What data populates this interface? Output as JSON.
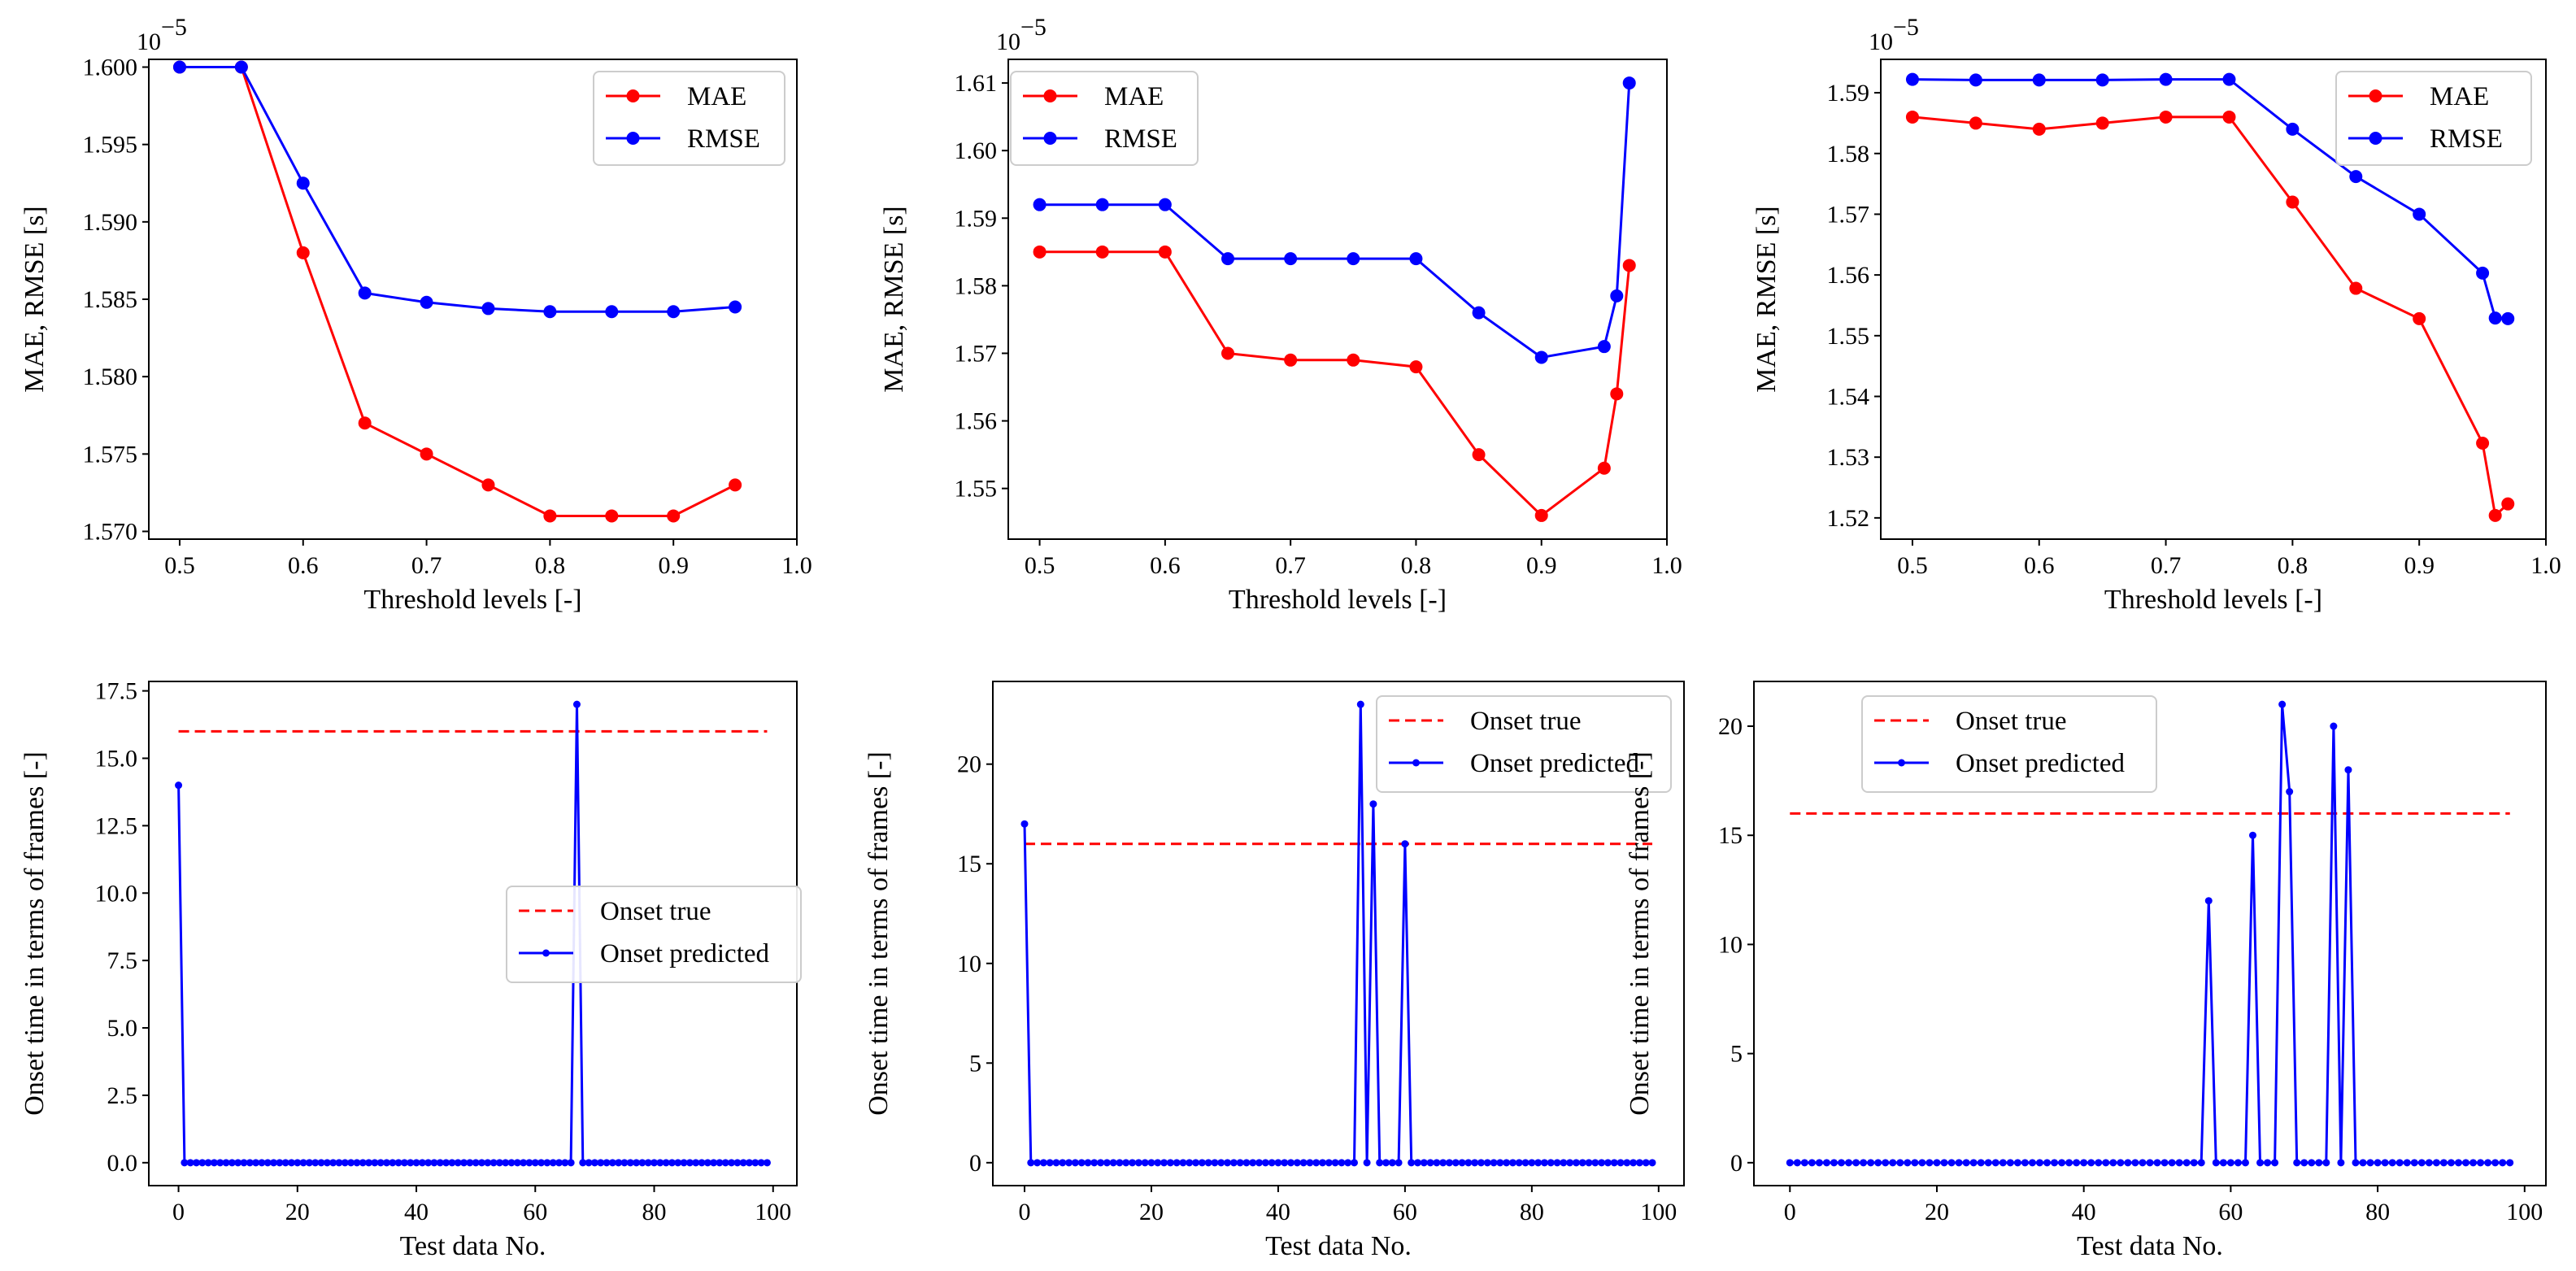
{
  "colors": {
    "mae": "#ff0000",
    "rmse": "#0000ff",
    "true": "#ff0000",
    "pred": "#0000ff"
  },
  "chart_data": [
    {
      "type": "line",
      "xlabel": "Threshold levels [-]",
      "ylabel": "MAE, RMSE [s]",
      "y_exponent": "10",
      "y_exponent_power": "−5",
      "xlim": [
        0.475,
        1.0
      ],
      "ylim": [
        1.5695,
        1.6005
      ],
      "xticks": [
        0.5,
        0.6,
        0.7,
        0.8,
        0.9,
        1.0
      ],
      "xtick_labels": [
        "0.5",
        "0.6",
        "0.7",
        "0.8",
        "0.9",
        "1.0"
      ],
      "yticks": [
        1.57,
        1.575,
        1.58,
        1.585,
        1.59,
        1.595,
        1.6
      ],
      "ytick_labels": [
        "1.570",
        "1.575",
        "1.580",
        "1.585",
        "1.590",
        "1.595",
        "1.600"
      ],
      "legend_position": "upper right",
      "series": [
        {
          "name": "MAE",
          "color": "#ff0000",
          "marker": "large",
          "x": [
            0.5,
            0.55,
            0.6,
            0.65,
            0.7,
            0.75,
            0.8,
            0.85,
            0.9,
            0.95
          ],
          "values": [
            1.6,
            1.6,
            1.588,
            1.577,
            1.575,
            1.573,
            1.571,
            1.571,
            1.571,
            1.573
          ]
        },
        {
          "name": "RMSE",
          "color": "#0000ff",
          "marker": "large",
          "x": [
            0.5,
            0.55,
            0.6,
            0.65,
            0.7,
            0.75,
            0.8,
            0.85,
            0.9,
            0.95
          ],
          "values": [
            1.6,
            1.6,
            1.5925,
            1.5854,
            1.5848,
            1.5844,
            1.5842,
            1.5842,
            1.5842,
            1.5845
          ]
        }
      ]
    },
    {
      "type": "line",
      "xlabel": "Threshold levels [-]",
      "ylabel": "MAE, RMSE [s]",
      "y_exponent": "10",
      "y_exponent_power": "−5",
      "xlim": [
        0.475,
        1.0
      ],
      "ylim": [
        1.5425,
        1.6135
      ],
      "xticks": [
        0.5,
        0.6,
        0.7,
        0.8,
        0.9,
        1.0
      ],
      "xtick_labels": [
        "0.5",
        "0.6",
        "0.7",
        "0.8",
        "0.9",
        "1.0"
      ],
      "yticks": [
        1.55,
        1.56,
        1.57,
        1.58,
        1.59,
        1.6,
        1.61
      ],
      "ytick_labels": [
        "1.55",
        "1.56",
        "1.57",
        "1.58",
        "1.59",
        "1.60",
        "1.61"
      ],
      "legend_position": "upper left",
      "series": [
        {
          "name": "MAE",
          "color": "#ff0000",
          "marker": "large",
          "x": [
            0.5,
            0.55,
            0.6,
            0.65,
            0.7,
            0.75,
            0.8,
            0.85,
            0.9,
            0.95,
            0.96,
            0.97
          ],
          "values": [
            1.585,
            1.585,
            1.585,
            1.57,
            1.569,
            1.569,
            1.568,
            1.555,
            1.546,
            1.553,
            1.564,
            1.583
          ]
        },
        {
          "name": "RMSE",
          "color": "#0000ff",
          "marker": "large",
          "x": [
            0.5,
            0.55,
            0.6,
            0.65,
            0.7,
            0.75,
            0.8,
            0.85,
            0.9,
            0.95,
            0.96,
            0.97
          ],
          "values": [
            1.592,
            1.592,
            1.592,
            1.584,
            1.584,
            1.584,
            1.584,
            1.576,
            1.5694,
            1.571,
            1.5785,
            1.61
          ]
        }
      ]
    },
    {
      "type": "line",
      "xlabel": "Threshold levels [-]",
      "ylabel": "MAE, RMSE [s]",
      "y_exponent": "10",
      "y_exponent_power": "−5",
      "xlim": [
        0.475,
        1.0
      ],
      "ylim": [
        1.5165,
        1.5955
      ],
      "xticks": [
        0.5,
        0.6,
        0.7,
        0.8,
        0.9,
        1.0
      ],
      "xtick_labels": [
        "0.5",
        "0.6",
        "0.7",
        "0.8",
        "0.9",
        "1.0"
      ],
      "yticks": [
        1.52,
        1.53,
        1.54,
        1.55,
        1.56,
        1.57,
        1.58,
        1.59
      ],
      "ytick_labels": [
        "1.52",
        "1.53",
        "1.54",
        "1.55",
        "1.56",
        "1.57",
        "1.58",
        "1.59"
      ],
      "legend_position": "upper right",
      "series": [
        {
          "name": "MAE",
          "color": "#ff0000",
          "marker": "large",
          "x": [
            0.5,
            0.55,
            0.6,
            0.65,
            0.7,
            0.75,
            0.8,
            0.85,
            0.9,
            0.95,
            0.96,
            0.97
          ],
          "values": [
            1.586,
            1.585,
            1.584,
            1.585,
            1.586,
            1.586,
            1.572,
            1.5578,
            1.5528,
            1.5323,
            1.5204,
            1.5223
          ]
        },
        {
          "name": "RMSE",
          "color": "#0000ff",
          "marker": "large",
          "x": [
            0.5,
            0.55,
            0.6,
            0.65,
            0.7,
            0.75,
            0.8,
            0.85,
            0.9,
            0.95,
            0.96,
            0.97
          ],
          "values": [
            1.5922,
            1.5921,
            1.5921,
            1.5921,
            1.5922,
            1.5922,
            1.584,
            1.5762,
            1.57,
            1.5603,
            1.5529,
            1.5528
          ]
        }
      ]
    },
    {
      "type": "line",
      "xlabel": "Test data No.",
      "ylabel": "Onset time in terms of frames [-]",
      "xlim": [
        -5,
        104
      ],
      "ylim": [
        -0.85,
        17.85
      ],
      "xticks": [
        0,
        20,
        40,
        60,
        80,
        100
      ],
      "xtick_labels": [
        "0",
        "20",
        "40",
        "60",
        "80",
        "100"
      ],
      "yticks": [
        0,
        2.5,
        5,
        7.5,
        10,
        12.5,
        15,
        17.5
      ],
      "ytick_labels": [
        "0.0",
        "2.5",
        "5.0",
        "7.5",
        "10.0",
        "12.5",
        "15.0",
        "17.5"
      ],
      "legend_position": "center right",
      "true_onset": {
        "name": "Onset true",
        "value": 16,
        "x_range": [
          0,
          99
        ]
      },
      "predicted": {
        "name": "Onset predicted",
        "count": 100,
        "nonzero": [
          [
            0,
            14
          ],
          [
            67,
            17
          ]
        ]
      }
    },
    {
      "type": "line",
      "xlabel": "Test data No.",
      "ylabel": "Onset time in terms of frames [-]",
      "xlim": [
        -5,
        104
      ],
      "ylim": [
        -1.15,
        24.15
      ],
      "xticks": [
        0,
        20,
        40,
        60,
        80,
        100
      ],
      "xtick_labels": [
        "0",
        "20",
        "40",
        "60",
        "80",
        "100"
      ],
      "yticks": [
        0,
        5,
        10,
        15,
        20
      ],
      "ytick_labels": [
        "0",
        "5",
        "10",
        "15",
        "20"
      ],
      "legend_position": "upper right",
      "true_onset": {
        "name": "Onset true",
        "value": 16,
        "x_range": [
          0,
          99
        ]
      },
      "predicted": {
        "name": "Onset predicted",
        "count": 100,
        "nonzero": [
          [
            0,
            17
          ],
          [
            53,
            23
          ],
          [
            55,
            18
          ],
          [
            60,
            16
          ]
        ]
      }
    },
    {
      "type": "line",
      "xlabel": "Test data No.",
      "ylabel": "Onset time in terms of frames [-]",
      "xlim": [
        -4.9,
        102.9
      ],
      "ylim": [
        -1.05,
        22.05
      ],
      "xticks": [
        0,
        20,
        40,
        60,
        80,
        100
      ],
      "xtick_labels": [
        "0",
        "20",
        "40",
        "60",
        "80",
        "100"
      ],
      "yticks": [
        0,
        5,
        10,
        15,
        20
      ],
      "ytick_labels": [
        "0",
        "5",
        "10",
        "15",
        "20"
      ],
      "legend_position": "upper left",
      "true_onset": {
        "name": "Onset true",
        "value": 16,
        "x_range": [
          0,
          98
        ]
      },
      "predicted": {
        "name": "Onset predicted",
        "count": 99,
        "nonzero": [
          [
            57,
            12
          ],
          [
            63,
            15
          ],
          [
            67,
            21
          ],
          [
            68,
            17
          ],
          [
            74,
            20
          ],
          [
            76,
            18
          ]
        ]
      }
    }
  ]
}
